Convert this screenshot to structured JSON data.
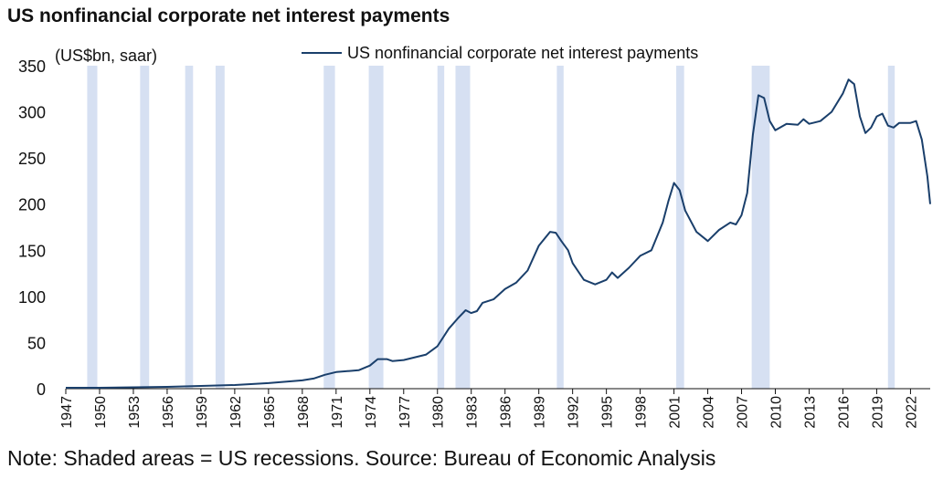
{
  "title": "US nonfinancial corporate net interest payments",
  "footnote": "Note: Shaded areas = US recessions. Source: Bureau of Economic Analysis",
  "colors": {
    "line": "#1a3f6b",
    "recession": "#d6e0f2",
    "axis": "#111111",
    "text": "#111111"
  },
  "chart_data": {
    "type": "line",
    "title": "US nonfinancial corporate net interest payments",
    "ylabel": "(US$bn, saar)",
    "xlabel": "",
    "ylim": [
      0,
      350
    ],
    "xlim": [
      1947,
      2023.75
    ],
    "yticks": [
      0,
      50,
      100,
      150,
      200,
      250,
      300,
      350
    ],
    "xticks": [
      "1947",
      "1950",
      "1953",
      "1956",
      "1959",
      "1962",
      "1965",
      "1968",
      "1971",
      "1974",
      "1977",
      "1980",
      "1983",
      "1986",
      "1989",
      "1992",
      "1995",
      "1998",
      "2001",
      "2004",
      "2007",
      "2010",
      "2013",
      "2016",
      "2019",
      "2022"
    ],
    "grid": false,
    "legend": "top",
    "recessions": [
      [
        1948.9,
        1949.8
      ],
      [
        1953.6,
        1954.4
      ],
      [
        1957.6,
        1958.3
      ],
      [
        1960.3,
        1961.1
      ],
      [
        1969.9,
        1970.9
      ],
      [
        1973.9,
        1975.2
      ],
      [
        1980.0,
        1980.6
      ],
      [
        1981.6,
        1982.9
      ],
      [
        1990.6,
        1991.2
      ],
      [
        2001.2,
        2001.9
      ],
      [
        2007.9,
        2009.5
      ],
      [
        2020.0,
        2020.6
      ]
    ],
    "series": [
      {
        "name": "US nonfinancial corporate net interest payments",
        "x": [
          1947,
          1950,
          1953,
          1956,
          1959,
          1962,
          1965,
          1968,
          1969,
          1970,
          1971,
          1972,
          1973,
          1974,
          1974.7,
          1975.5,
          1976,
          1977,
          1978,
          1979,
          1980,
          1981,
          1981.8,
          1982.5,
          1983,
          1983.5,
          1984,
          1985,
          1986,
          1987,
          1988,
          1989,
          1990,
          1990.5,
          1991,
          1991.6,
          1992,
          1993,
          1994,
          1995,
          1995.5,
          1996,
          1997,
          1998,
          1999,
          2000,
          2000.5,
          2001,
          2001.5,
          2002,
          2003,
          2004,
          2005,
          2006,
          2006.5,
          2007,
          2007.5,
          2008,
          2008.5,
          2009,
          2009.5,
          2010,
          2011,
          2012,
          2012.5,
          2013,
          2014,
          2015,
          2016,
          2016.5,
          2017,
          2017.5,
          2018,
          2018.5,
          2019,
          2019.5,
          2020,
          2020.5,
          2021,
          2022,
          2022.5,
          2023,
          2023.5,
          2023.75
        ],
        "values": [
          1,
          1,
          1.5,
          2,
          3,
          4,
          6,
          9,
          11,
          15,
          18,
          19,
          20,
          25,
          32,
          32,
          30,
          31,
          34,
          37,
          46,
          65,
          76,
          85,
          82,
          84,
          93,
          97,
          108,
          115,
          128,
          155,
          170,
          169,
          160,
          150,
          136,
          118,
          113,
          118,
          126,
          120,
          131,
          144,
          150,
          180,
          203,
          223,
          215,
          193,
          170,
          160,
          172,
          180,
          178,
          188,
          212,
          275,
          318,
          315,
          290,
          280,
          287,
          286,
          292,
          287,
          290,
          300,
          320,
          335,
          330,
          295,
          277,
          283,
          295,
          298,
          285,
          283,
          288,
          288,
          290,
          270,
          230,
          200
        ]
      }
    ]
  }
}
